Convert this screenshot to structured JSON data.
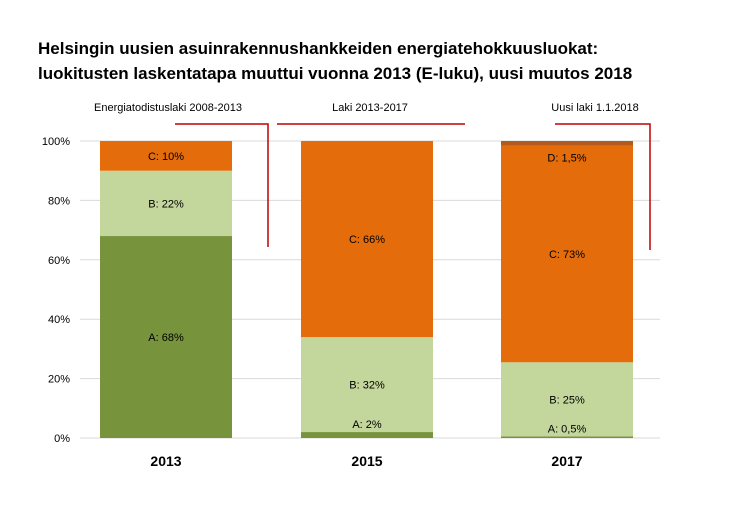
{
  "chart_data": {
    "type": "bar",
    "stacked": true,
    "percent": true,
    "title_lines": [
      "Helsingin uusien asuinrakennushankkeiden energiatehokkuusluokat:",
      "luokitusten laskentatapa muuttui vuonna 2013 (E-luku), uusi muutos 2018"
    ],
    "categories": [
      "2013",
      "2015",
      "2017"
    ],
    "ylim": [
      0,
      100
    ],
    "yticks": [
      "0%",
      "20%",
      "40%",
      "60%",
      "80%",
      "100%"
    ],
    "grid": true,
    "series": [
      {
        "name": "A",
        "color": "#77933c",
        "values": [
          68,
          2,
          0.5
        ],
        "labels": [
          "A: 68%",
          "A: 2%",
          "A: 0,5%"
        ]
      },
      {
        "name": "B",
        "color": "#c3d69b",
        "values": [
          22,
          32,
          25
        ],
        "labels": [
          "B: 22%",
          "B: 32%",
          "B: 25%"
        ]
      },
      {
        "name": "C",
        "color": "#e46c0a",
        "values": [
          10,
          66,
          73
        ],
        "labels": [
          "C: 10%",
          "C: 66%",
          "C: 73%"
        ]
      },
      {
        "name": "D",
        "color": "#b35a1f",
        "values": [
          0,
          0,
          1.5
        ],
        "labels": [
          "",
          "",
          "D: 1,5%"
        ]
      }
    ],
    "annotations": [
      {
        "text": "Energiatodistuslaki 2008-2013",
        "line_color": "#c00000"
      },
      {
        "text": "Laki 2013-2017",
        "line_color": "#c00000"
      },
      {
        "text": "Uusi laki 1.1.2018",
        "line_color": "#c00000"
      }
    ]
  }
}
